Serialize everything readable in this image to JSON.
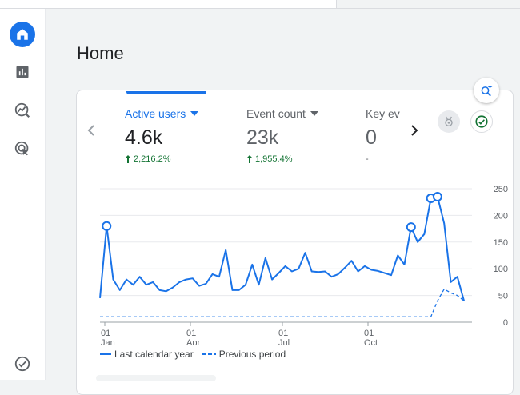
{
  "header": {
    "title": "Home"
  },
  "metrics": [
    {
      "label": "Active users",
      "value": "4.6k",
      "change": "2,216.2%"
    },
    {
      "label": "Event count",
      "value": "23k",
      "change": "1,955.4%"
    },
    {
      "label": "Key ev",
      "value": "0",
      "change": "-"
    }
  ],
  "icons": {
    "nav": [
      "home-icon",
      "reports-icon",
      "explore-icon",
      "advertising-icon",
      "admin-icon"
    ],
    "insights": "insights-search-icon",
    "badges": [
      "award-icon",
      "check-icon"
    ]
  },
  "colors": {
    "accent": "#1a73e8",
    "positive": "#137333"
  },
  "chart_data": {
    "type": "line",
    "ylim": [
      0,
      250
    ],
    "y_ticks": [
      "250",
      "200",
      "150",
      "100",
      "50",
      "0"
    ],
    "x_ticks": [
      {
        "day": "01",
        "month": "Jan"
      },
      {
        "day": "01",
        "month": "Apr"
      },
      {
        "day": "01",
        "month": "Jul"
      },
      {
        "day": "01",
        "month": "Oct"
      }
    ],
    "series": [
      {
        "name": "Last calendar year",
        "style": "solid",
        "values": [
          45,
          180,
          80,
          60,
          80,
          70,
          85,
          70,
          75,
          60,
          58,
          65,
          75,
          80,
          82,
          68,
          72,
          90,
          85,
          135,
          60,
          60,
          70,
          108,
          70,
          120,
          80,
          92,
          105,
          95,
          100,
          130,
          95,
          94,
          95,
          85,
          90,
          102,
          115,
          95,
          105,
          98,
          96,
          92,
          88,
          125,
          108,
          178,
          150,
          165,
          232,
          235,
          185,
          75,
          85,
          40
        ],
        "circled": [
          1,
          47,
          50,
          51
        ]
      },
      {
        "name": "Previous period",
        "style": "dashed",
        "values": [
          10,
          10,
          10,
          10,
          10,
          10,
          10,
          10,
          10,
          10,
          10,
          10,
          10,
          10,
          10,
          10,
          10,
          10,
          10,
          10,
          10,
          10,
          10,
          10,
          10,
          10,
          10,
          10,
          10,
          10,
          10,
          10,
          10,
          10,
          10,
          10,
          10,
          10,
          10,
          10,
          10,
          10,
          10,
          10,
          10,
          10,
          10,
          10,
          10,
          10,
          10,
          40,
          62,
          55,
          50,
          40
        ]
      }
    ]
  }
}
